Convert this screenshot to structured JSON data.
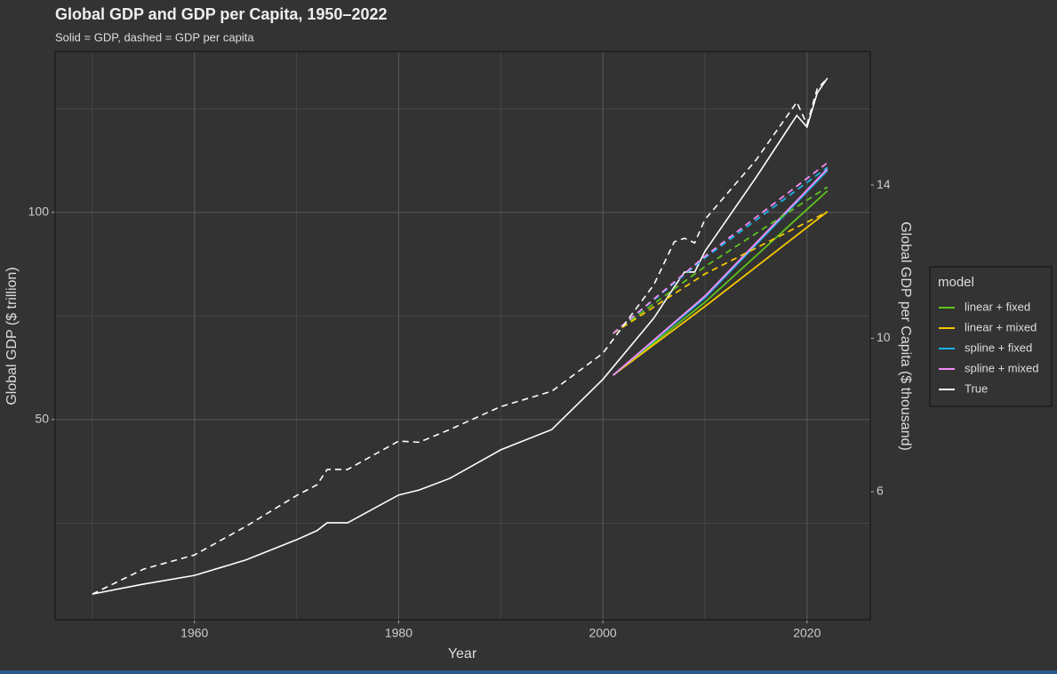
{
  "chart_data": {
    "type": "line",
    "title": "Global GDP and GDP per Capita, 1950–2022",
    "subtitle": "Solid = GDP, dashed = GDP per capita",
    "x_label": "Year",
    "y_label": "Global GDP ($ trillion)",
    "y2_label": "Global GDP per Capita ($ thousand)",
    "legend_title": "model",
    "legend_position": "right",
    "grid": true,
    "xlim": [
      1946.35,
      2026.2
    ],
    "xticks": [
      1960,
      1980,
      2000,
      2020
    ],
    "xticks_minor": [
      1950,
      1970,
      1990,
      2010
    ],
    "ylim": [
      1.7,
      138.8
    ],
    "yticks": [
      50,
      100
    ],
    "yticks_minor": [
      25,
      75,
      125
    ],
    "y2lim": [
      2.66,
      17.48
    ],
    "y2ticks": [
      6,
      10,
      14
    ],
    "series": [
      {
        "name": "linear + fixed",
        "color": "#5fc41c",
        "dashed": false,
        "axis": "y",
        "x": [
          2001,
          2010,
          2022
        ],
        "values": [
          60.7,
          78.3,
          105.2
        ]
      },
      {
        "name": "linear + mixed",
        "color": "#f5c800",
        "dashed": false,
        "axis": "y",
        "x": [
          2001,
          2010,
          2022
        ],
        "values": [
          60.7,
          77.3,
          100.2
        ]
      },
      {
        "name": "spline + fixed",
        "color": "#1ab2e6",
        "dashed": false,
        "axis": "y",
        "x": [
          2001,
          2010,
          2022
        ],
        "values": [
          60.7,
          79.4,
          110.1
        ]
      },
      {
        "name": "spline + mixed",
        "color": "#f58cf5",
        "dashed": false,
        "axis": "y",
        "x": [
          2001,
          2010,
          2022
        ],
        "values": [
          60.7,
          79.8,
          110.5
        ]
      },
      {
        "name": "True",
        "color": "#ffffff",
        "dashed": false,
        "axis": "y",
        "x": [
          1950,
          1955,
          1960,
          1965,
          1970,
          1972,
          1973,
          1975,
          1980,
          1982,
          1985,
          1990,
          1995,
          2000,
          2005,
          2007,
          2008,
          2009,
          2010,
          2015,
          2019,
          2020,
          2021,
          2022
        ],
        "values": [
          7.9,
          10.3,
          12.4,
          16.1,
          21.0,
          23.2,
          25.1,
          25.1,
          31.8,
          33.0,
          35.8,
          42.7,
          47.6,
          59.7,
          74.5,
          82.0,
          85.6,
          85.6,
          90.6,
          108.4,
          123.4,
          120.6,
          128.8,
          132.4
        ]
      },
      {
        "name": "linear + fixed",
        "color": "#5fc41c",
        "dashed": true,
        "axis": "y2",
        "x": [
          2001,
          2010,
          2022
        ],
        "values": [
          10.13,
          11.87,
          13.95
        ]
      },
      {
        "name": "linear + mixed",
        "color": "#f5c800",
        "dashed": true,
        "axis": "y2",
        "x": [
          2001,
          2010,
          2022
        ],
        "values": [
          10.13,
          11.68,
          13.3
        ]
      },
      {
        "name": "spline + fixed",
        "color": "#1ab2e6",
        "dashed": true,
        "axis": "y2",
        "x": [
          2001,
          2010,
          2022
        ],
        "values": [
          10.13,
          12.1,
          14.46
        ]
      },
      {
        "name": "spline + mixed",
        "color": "#f58cf5",
        "dashed": true,
        "axis": "y2",
        "x": [
          2001,
          2010,
          2022
        ],
        "values": [
          10.13,
          12.14,
          14.58
        ]
      },
      {
        "name": "True",
        "color": "#ffffff",
        "dashed": true,
        "axis": "y2",
        "x": [
          1950,
          1955,
          1960,
          1965,
          1970,
          1972,
          1973,
          1975,
          1980,
          1982,
          1985,
          1990,
          1995,
          2000,
          2005,
          2007,
          2008,
          2009,
          2010,
          2015,
          2019,
          2020,
          2021,
          2022
        ],
        "values": [
          3.33,
          3.98,
          4.35,
          5.09,
          5.9,
          6.18,
          6.58,
          6.58,
          7.32,
          7.29,
          7.62,
          8.22,
          8.62,
          9.61,
          11.4,
          12.52,
          12.61,
          12.49,
          13.1,
          14.65,
          16.16,
          15.58,
          16.51,
          16.78
        ]
      }
    ]
  }
}
